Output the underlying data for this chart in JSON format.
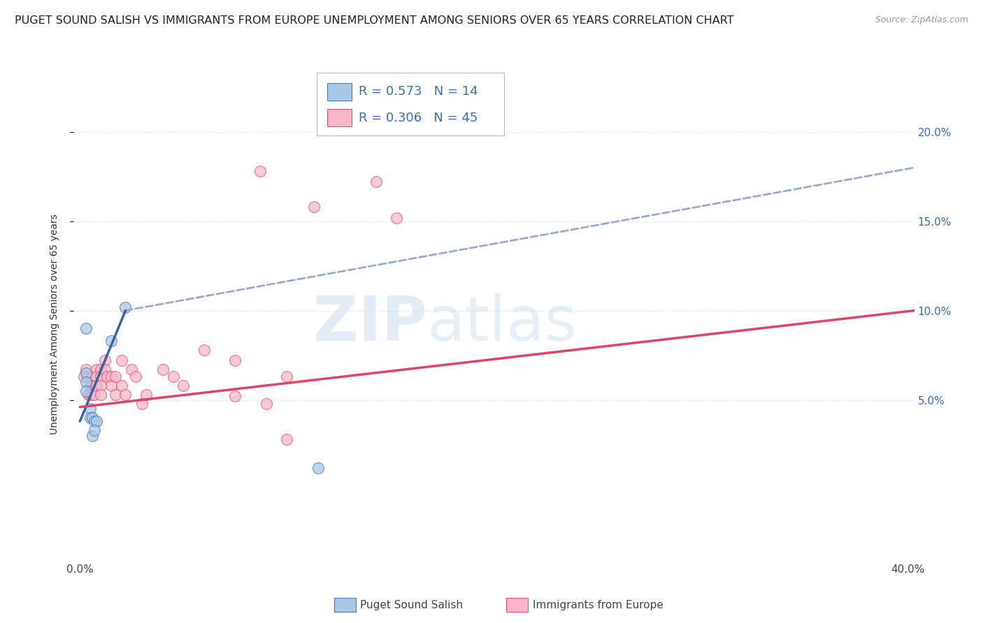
{
  "title": "PUGET SOUND SALISH VS IMMIGRANTS FROM EUROPE UNEMPLOYMENT AMONG SENIORS OVER 65 YEARS CORRELATION CHART",
  "source": "Source: ZipAtlas.com",
  "ylabel": "Unemployment Among Seniors over 65 years",
  "xlim": [
    -0.003,
    0.403
  ],
  "ylim": [
    -0.04,
    0.225
  ],
  "blue_color": "#a8c8e8",
  "pink_color": "#f8b8c8",
  "blue_edge_color": "#4477bb",
  "pink_edge_color": "#dd5577",
  "blue_line_color": "#3366aa",
  "pink_line_color": "#dd4466",
  "dashed_line_color": "#99aacc",
  "legend_blue_R": "R = 0.573",
  "legend_blue_N": "N = 14",
  "legend_pink_R": "R = 0.306",
  "legend_pink_N": "N = 45",
  "blue_scatter": [
    [
      0.003,
      0.09
    ],
    [
      0.003,
      0.065
    ],
    [
      0.003,
      0.06
    ],
    [
      0.003,
      0.055
    ],
    [
      0.005,
      0.045
    ],
    [
      0.005,
      0.04
    ],
    [
      0.006,
      0.04
    ],
    [
      0.007,
      0.038
    ],
    [
      0.008,
      0.038
    ],
    [
      0.006,
      0.03
    ],
    [
      0.007,
      0.033
    ],
    [
      0.015,
      0.083
    ],
    [
      0.022,
      0.102
    ],
    [
      0.115,
      0.012
    ]
  ],
  "pink_scatter": [
    [
      0.002,
      0.063
    ],
    [
      0.003,
      0.067
    ],
    [
      0.004,
      0.063
    ],
    [
      0.004,
      0.053
    ],
    [
      0.005,
      0.058
    ],
    [
      0.005,
      0.053
    ],
    [
      0.006,
      0.063
    ],
    [
      0.006,
      0.058
    ],
    [
      0.006,
      0.053
    ],
    [
      0.007,
      0.058
    ],
    [
      0.007,
      0.053
    ],
    [
      0.008,
      0.067
    ],
    [
      0.008,
      0.063
    ],
    [
      0.008,
      0.058
    ],
    [
      0.01,
      0.067
    ],
    [
      0.01,
      0.063
    ],
    [
      0.01,
      0.058
    ],
    [
      0.01,
      0.053
    ],
    [
      0.012,
      0.072
    ],
    [
      0.012,
      0.067
    ],
    [
      0.013,
      0.063
    ],
    [
      0.015,
      0.063
    ],
    [
      0.015,
      0.058
    ],
    [
      0.017,
      0.063
    ],
    [
      0.017,
      0.053
    ],
    [
      0.02,
      0.072
    ],
    [
      0.02,
      0.058
    ],
    [
      0.022,
      0.053
    ],
    [
      0.025,
      0.067
    ],
    [
      0.027,
      0.063
    ],
    [
      0.03,
      0.048
    ],
    [
      0.032,
      0.053
    ],
    [
      0.04,
      0.067
    ],
    [
      0.045,
      0.063
    ],
    [
      0.05,
      0.058
    ],
    [
      0.06,
      0.078
    ],
    [
      0.075,
      0.072
    ],
    [
      0.075,
      0.052
    ],
    [
      0.09,
      0.048
    ],
    [
      0.1,
      0.063
    ],
    [
      0.113,
      0.158
    ],
    [
      0.143,
      0.172
    ],
    [
      0.153,
      0.152
    ],
    [
      0.087,
      0.178
    ],
    [
      0.1,
      0.028
    ]
  ],
  "blue_trendline_x": [
    0.0,
    0.022
  ],
  "blue_trendline_y": [
    0.038,
    0.1
  ],
  "pink_trendline_x": [
    0.0,
    0.403
  ],
  "pink_trendline_y": [
    0.046,
    0.1
  ],
  "dashed_trendline_x": [
    0.022,
    0.403
  ],
  "dashed_trendline_y": [
    0.1,
    0.18
  ],
  "watermark_zip": "ZIP",
  "watermark_atlas": "atlas",
  "background_color": "#ffffff",
  "title_fontsize": 11.5,
  "bottom_legend_blue": "Puget Sound Salish",
  "bottom_legend_pink": "Immigrants from Europe",
  "grid_color": "#dddddd",
  "ytick_vals": [
    0.05,
    0.1,
    0.15,
    0.2
  ],
  "ytick_labels": [
    "5.0%",
    "10.0%",
    "15.0%",
    "20.0%"
  ],
  "xtick_vals": [
    0.0,
    0.05,
    0.1,
    0.15,
    0.2,
    0.25,
    0.3,
    0.35,
    0.4
  ],
  "marker_size": 130
}
